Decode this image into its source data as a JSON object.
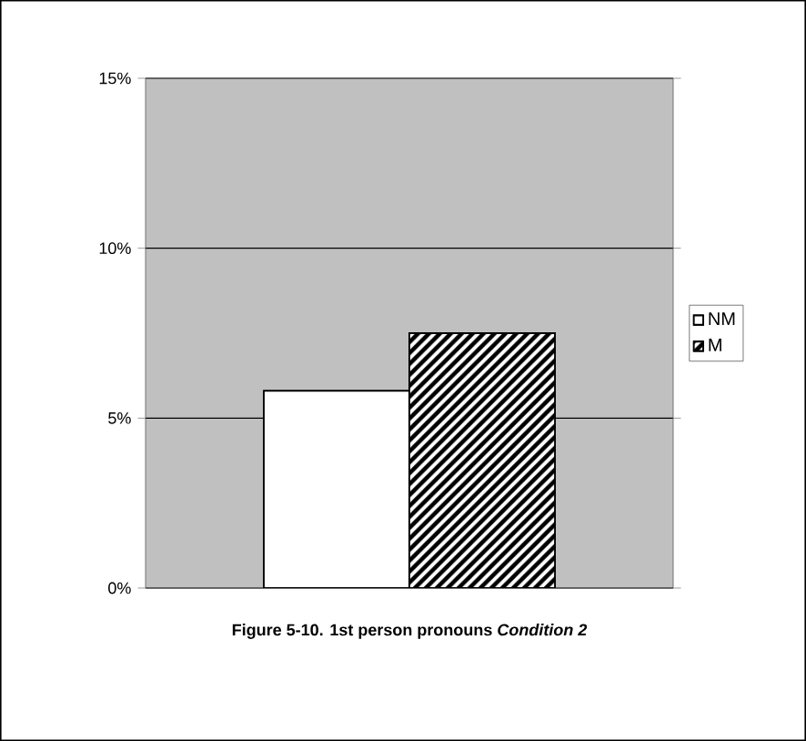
{
  "chart_data": {
    "type": "bar",
    "title": "Figure 5-10. 1st person pronouns *Condition 2*",
    "categories": [
      null
    ],
    "series": [
      {
        "name": "NM",
        "color": "#ffffff",
        "values": [
          5.8
        ]
      },
      {
        "name": "M",
        "color": "#000000",
        "values": [
          7.5
        ]
      }
    ],
    "ylim": [
      0,
      15
    ],
    "yticks": [
      {
        "value": 0,
        "label": "0%"
      },
      {
        "value": 5,
        "label": "5%"
      },
      {
        "value": 10,
        "label": "10%"
      },
      {
        "value": 15,
        "label": "15%"
      }
    ],
    "grid": "y",
    "legend": "right"
  }
}
